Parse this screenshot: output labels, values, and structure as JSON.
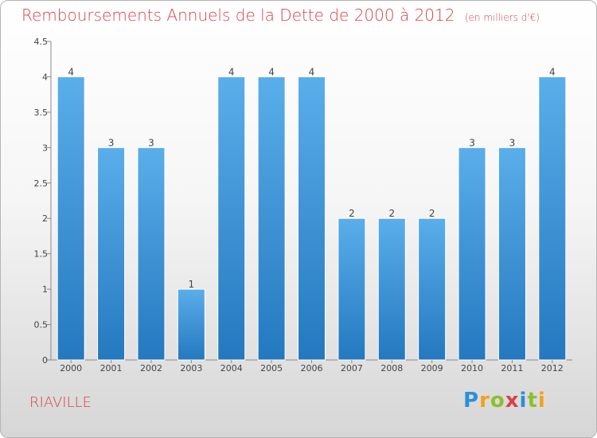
{
  "chart_data": {
    "type": "bar",
    "title": "Remboursements Annuels de la Dette de 2000 à 2012",
    "subtitle": "(en milliers d'€)",
    "categories": [
      "2000",
      "2001",
      "2002",
      "2003",
      "2004",
      "2005",
      "2006",
      "2007",
      "2008",
      "2009",
      "2010",
      "2011",
      "2012"
    ],
    "values": [
      4,
      3,
      3,
      1,
      4,
      4,
      4,
      2,
      2,
      2,
      3,
      3,
      4
    ],
    "ylim": [
      0,
      4.5
    ],
    "yticks": [
      "0",
      "0.5",
      "1",
      "1.5",
      "2",
      "2.5",
      "3",
      "3.5",
      "4",
      "4.5"
    ],
    "grid": false,
    "bar_color": "#3d96d9",
    "label_color": "#444444"
  },
  "commune": "RIAVILLE",
  "logo": {
    "letters": [
      "P",
      "r",
      "o",
      "x",
      "i",
      "t",
      "i"
    ],
    "colors": [
      "#2a8fd8",
      "#f0a21c",
      "#8bbf2f",
      "#d8414a",
      "#2a8fd8",
      "#8bbf2f",
      "#f0a21c"
    ]
  }
}
